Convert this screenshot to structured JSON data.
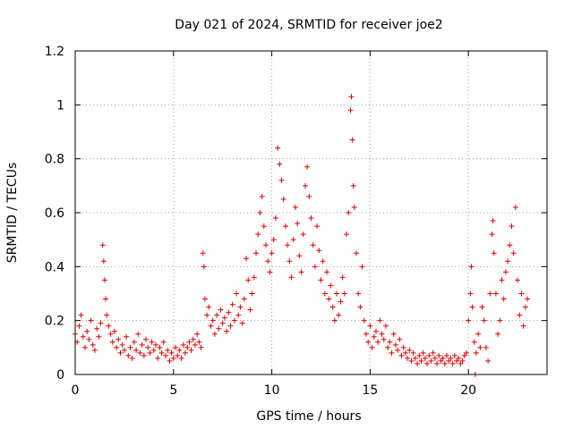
{
  "chart_data": {
    "type": "scatter",
    "title": "Day 021 of 2024, SRMTID for receiver joe2",
    "xlabel": "GPS time / hours",
    "ylabel": "SRMTID / TECUs",
    "xlim": [
      0,
      24
    ],
    "ylim": [
      0,
      1.2
    ],
    "xticks": [
      0,
      5,
      10,
      15,
      20
    ],
    "yticks": [
      0,
      0.2,
      0.4,
      0.6,
      0.8,
      1,
      1.2
    ],
    "xtick_labels": [
      "0",
      "5",
      "10",
      "15",
      "20"
    ],
    "ytick_labels": [
      "0",
      "0.2",
      "0.4",
      "0.6",
      "0.8",
      "1",
      "1.2"
    ],
    "grid": true,
    "marker": "+",
    "marker_color": "#e00000",
    "series": [
      {
        "name": "SRMTID",
        "points": [
          [
            0.0,
            0.15
          ],
          [
            0.1,
            0.12
          ],
          [
            0.2,
            0.18
          ],
          [
            0.3,
            0.22
          ],
          [
            0.4,
            0.14
          ],
          [
            0.5,
            0.1
          ],
          [
            0.6,
            0.16
          ],
          [
            0.7,
            0.13
          ],
          [
            0.8,
            0.2
          ],
          [
            0.9,
            0.11
          ],
          [
            1.0,
            0.09
          ],
          [
            1.1,
            0.17
          ],
          [
            1.2,
            0.14
          ],
          [
            1.3,
            0.19
          ],
          [
            1.4,
            0.48
          ],
          [
            1.45,
            0.42
          ],
          [
            1.5,
            0.35
          ],
          [
            1.55,
            0.28
          ],
          [
            1.6,
            0.22
          ],
          [
            1.7,
            0.18
          ],
          [
            1.8,
            0.15
          ],
          [
            1.9,
            0.12
          ],
          [
            2.0,
            0.16
          ],
          [
            2.1,
            0.1
          ],
          [
            2.2,
            0.13
          ],
          [
            2.3,
            0.08
          ],
          [
            2.4,
            0.11
          ],
          [
            2.5,
            0.09
          ],
          [
            2.6,
            0.14
          ],
          [
            2.7,
            0.07
          ],
          [
            2.8,
            0.1
          ],
          [
            2.9,
            0.06
          ],
          [
            3.0,
            0.12
          ],
          [
            3.1,
            0.09
          ],
          [
            3.2,
            0.15
          ],
          [
            3.3,
            0.08
          ],
          [
            3.4,
            0.11
          ],
          [
            3.5,
            0.07
          ],
          [
            3.6,
            0.13
          ],
          [
            3.7,
            0.1
          ],
          [
            3.8,
            0.08
          ],
          [
            3.9,
            0.12
          ],
          [
            4.0,
            0.09
          ],
          [
            4.1,
            0.11
          ],
          [
            4.2,
            0.06
          ],
          [
            4.3,
            0.1
          ],
          [
            4.4,
            0.08
          ],
          [
            4.5,
            0.12
          ],
          [
            4.6,
            0.07
          ],
          [
            4.7,
            0.09
          ],
          [
            4.8,
            0.05
          ],
          [
            4.9,
            0.08
          ],
          [
            5.0,
            0.06
          ],
          [
            5.1,
            0.1
          ],
          [
            5.2,
            0.07
          ],
          [
            5.3,
            0.09
          ],
          [
            5.4,
            0.06
          ],
          [
            5.5,
            0.11
          ],
          [
            5.6,
            0.08
          ],
          [
            5.7,
            0.1
          ],
          [
            5.8,
            0.12
          ],
          [
            5.9,
            0.09
          ],
          [
            6.0,
            0.13
          ],
          [
            6.1,
            0.11
          ],
          [
            6.2,
            0.15
          ],
          [
            6.3,
            0.12
          ],
          [
            6.4,
            0.1
          ],
          [
            6.5,
            0.45
          ],
          [
            6.55,
            0.4
          ],
          [
            6.6,
            0.28
          ],
          [
            6.7,
            0.22
          ],
          [
            6.8,
            0.25
          ],
          [
            6.9,
            0.18
          ],
          [
            7.0,
            0.2
          ],
          [
            7.1,
            0.15
          ],
          [
            7.2,
            0.22
          ],
          [
            7.3,
            0.17
          ],
          [
            7.4,
            0.24
          ],
          [
            7.5,
            0.19
          ],
          [
            7.6,
            0.21
          ],
          [
            7.7,
            0.16
          ],
          [
            7.8,
            0.23
          ],
          [
            7.9,
            0.18
          ],
          [
            8.0,
            0.26
          ],
          [
            8.1,
            0.2
          ],
          [
            8.2,
            0.3
          ],
          [
            8.3,
            0.22
          ],
          [
            8.4,
            0.25
          ],
          [
            8.5,
            0.19
          ],
          [
            8.6,
            0.28
          ],
          [
            8.7,
            0.43
          ],
          [
            8.8,
            0.35
          ],
          [
            8.9,
            0.24
          ],
          [
            9.0,
            0.3
          ],
          [
            9.1,
            0.36
          ],
          [
            9.2,
            0.45
          ],
          [
            9.3,
            0.52
          ],
          [
            9.4,
            0.6
          ],
          [
            9.5,
            0.66
          ],
          [
            9.6,
            0.55
          ],
          [
            9.7,
            0.48
          ],
          [
            9.8,
            0.42
          ],
          [
            9.9,
            0.38
          ],
          [
            10.0,
            0.45
          ],
          [
            10.1,
            0.5
          ],
          [
            10.2,
            0.58
          ],
          [
            10.3,
            0.84
          ],
          [
            10.4,
            0.78
          ],
          [
            10.5,
            0.72
          ],
          [
            10.6,
            0.65
          ],
          [
            10.7,
            0.55
          ],
          [
            10.8,
            0.48
          ],
          [
            10.9,
            0.42
          ],
          [
            11.0,
            0.36
          ],
          [
            11.1,
            0.5
          ],
          [
            11.2,
            0.62
          ],
          [
            11.3,
            0.56
          ],
          [
            11.4,
            0.44
          ],
          [
            11.5,
            0.38
          ],
          [
            11.6,
            0.52
          ],
          [
            11.7,
            0.7
          ],
          [
            11.8,
            0.77
          ],
          [
            11.9,
            0.66
          ],
          [
            12.0,
            0.58
          ],
          [
            12.1,
            0.48
          ],
          [
            12.2,
            0.4
          ],
          [
            12.3,
            0.55
          ],
          [
            12.4,
            0.46
          ],
          [
            12.5,
            0.35
          ],
          [
            12.6,
            0.42
          ],
          [
            12.7,
            0.3
          ],
          [
            12.8,
            0.38
          ],
          [
            12.9,
            0.28
          ],
          [
            13.0,
            0.33
          ],
          [
            13.1,
            0.25
          ],
          [
            13.2,
            0.2
          ],
          [
            13.3,
            0.3
          ],
          [
            13.4,
            0.22
          ],
          [
            13.5,
            0.27
          ],
          [
            13.6,
            0.36
          ],
          [
            13.7,
            0.3
          ],
          [
            13.8,
            0.52
          ],
          [
            13.9,
            0.6
          ],
          [
            14.0,
            0.98
          ],
          [
            14.05,
            1.03
          ],
          [
            14.1,
            0.87
          ],
          [
            14.15,
            0.7
          ],
          [
            14.2,
            0.62
          ],
          [
            14.3,
            0.45
          ],
          [
            14.4,
            0.3
          ],
          [
            14.5,
            0.25
          ],
          [
            14.6,
            0.4
          ],
          [
            14.7,
            0.2
          ],
          [
            14.8,
            0.15
          ],
          [
            14.9,
            0.12
          ],
          [
            15.0,
            0.18
          ],
          [
            15.1,
            0.1
          ],
          [
            15.2,
            0.14
          ],
          [
            15.3,
            0.16
          ],
          [
            15.4,
            0.12
          ],
          [
            15.5,
            0.2
          ],
          [
            15.6,
            0.15
          ],
          [
            15.7,
            0.13
          ],
          [
            15.8,
            0.18
          ],
          [
            15.9,
            0.1
          ],
          [
            16.0,
            0.12
          ],
          [
            16.1,
            0.08
          ],
          [
            16.2,
            0.15
          ],
          [
            16.3,
            0.11
          ],
          [
            16.4,
            0.09
          ],
          [
            16.5,
            0.13
          ],
          [
            16.6,
            0.07
          ],
          [
            16.7,
            0.1
          ],
          [
            16.8,
            0.08
          ],
          [
            16.9,
            0.06
          ],
          [
            17.0,
            0.09
          ],
          [
            17.1,
            0.05
          ],
          [
            17.2,
            0.08
          ],
          [
            17.3,
            0.06
          ],
          [
            17.4,
            0.04
          ],
          [
            17.5,
            0.07
          ],
          [
            17.6,
            0.05
          ],
          [
            17.7,
            0.08
          ],
          [
            17.8,
            0.06
          ],
          [
            17.9,
            0.04
          ],
          [
            18.0,
            0.07
          ],
          [
            18.1,
            0.05
          ],
          [
            18.2,
            0.08
          ],
          [
            18.3,
            0.06
          ],
          [
            18.4,
            0.04
          ],
          [
            18.5,
            0.07
          ],
          [
            18.6,
            0.05
          ],
          [
            18.7,
            0.06
          ],
          [
            18.8,
            0.04
          ],
          [
            18.9,
            0.07
          ],
          [
            19.0,
            0.05
          ],
          [
            19.1,
            0.06
          ],
          [
            19.2,
            0.04
          ],
          [
            19.3,
            0.07
          ],
          [
            19.4,
            0.05
          ],
          [
            19.5,
            0.06
          ],
          [
            19.6,
            0.04
          ],
          [
            19.7,
            0.05
          ],
          [
            19.8,
            0.07
          ],
          [
            19.9,
            0.08
          ],
          [
            20.0,
            0.2
          ],
          [
            20.1,
            0.3
          ],
          [
            20.15,
            0.4
          ],
          [
            20.2,
            0.25
          ],
          [
            20.3,
            0.12
          ],
          [
            20.35,
            0.0
          ],
          [
            20.4,
            0.08
          ],
          [
            20.5,
            0.15
          ],
          [
            20.6,
            0.1
          ],
          [
            20.7,
            0.25
          ],
          [
            20.8,
            0.2
          ],
          [
            20.9,
            0.1
          ],
          [
            21.0,
            0.05
          ],
          [
            21.1,
            0.3
          ],
          [
            21.2,
            0.52
          ],
          [
            21.25,
            0.57
          ],
          [
            21.3,
            0.45
          ],
          [
            21.4,
            0.3
          ],
          [
            21.5,
            0.15
          ],
          [
            21.6,
            0.2
          ],
          [
            21.7,
            0.35
          ],
          [
            21.8,
            0.28
          ],
          [
            21.9,
            0.38
          ],
          [
            22.0,
            0.42
          ],
          [
            22.1,
            0.48
          ],
          [
            22.2,
            0.55
          ],
          [
            22.3,
            0.45
          ],
          [
            22.4,
            0.62
          ],
          [
            22.5,
            0.35
          ],
          [
            22.6,
            0.22
          ],
          [
            22.7,
            0.3
          ],
          [
            22.8,
            0.18
          ],
          [
            22.9,
            0.25
          ],
          [
            23.0,
            0.28
          ]
        ]
      }
    ]
  }
}
